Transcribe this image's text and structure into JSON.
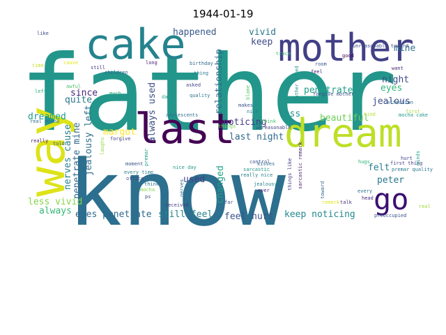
{
  "title": "1944-01-19",
  "colors": {
    "background": "#ffffff",
    "title": "#000000"
  },
  "words": [
    {
      "text": "father",
      "color": "#23968b"
    },
    {
      "text": "know",
      "color": "#2c6f8e"
    },
    {
      "text": "mother",
      "color": "#424086"
    },
    {
      "text": "cake",
      "color": "#25838e"
    },
    {
      "text": "last",
      "color": "#440154"
    },
    {
      "text": "dream",
      "color": "#bddf26"
    },
    {
      "text": "way",
      "color": "#dde318"
    },
    {
      "text": "go",
      "color": "#3b0f70"
    },
    {
      "text": "happened",
      "color": "#38588c"
    },
    {
      "text": "vivid",
      "color": "#2a788e"
    },
    {
      "text": "keep",
      "color": "#3e4a89"
    },
    {
      "text": "mine",
      "color": "#2d708e"
    },
    {
      "text": "relationship",
      "color": "#31688e"
    },
    {
      "text": "always used",
      "color": "#3d4e8a"
    },
    {
      "text": "since",
      "color": "#482878"
    },
    {
      "text": "quite",
      "color": "#2a778e"
    },
    {
      "text": "penetrate",
      "color": "#1f9f88"
    },
    {
      "text": "night",
      "color": "#3d4d8a"
    },
    {
      "text": "eyes",
      "color": "#35b779"
    },
    {
      "text": "jealous",
      "color": "#3e4c8a"
    },
    {
      "text": "dreamed",
      "color": "#1e9b8a"
    },
    {
      "text": "noticing",
      "color": "#443a83"
    },
    {
      "text": "less",
      "color": "#20928c"
    },
    {
      "text": "beautiful",
      "color": "#6ece58"
    },
    {
      "text": "last night",
      "color": "#30698e"
    },
    {
      "text": "margot",
      "color": "#fde725"
    },
    {
      "text": "felt",
      "color": "#287c8e"
    },
    {
      "text": "penetrate mine",
      "color": "#31688e"
    },
    {
      "text": "nerves cause",
      "color": "#277f8e"
    },
    {
      "text": "jealousy left",
      "color": "#2e6f8e"
    },
    {
      "text": "changed",
      "color": "#1fa187"
    },
    {
      "text": "used",
      "color": "#433e85"
    },
    {
      "text": "peter",
      "color": "#2a768e"
    },
    {
      "text": "less vivid",
      "color": "#86d549"
    },
    {
      "text": "always",
      "color": "#38b977"
    },
    {
      "text": "eyes penetrate",
      "color": "#31688e"
    },
    {
      "text": "still feel",
      "color": "#26828e"
    },
    {
      "text": "feel hurt",
      "color": "#3b528b"
    },
    {
      "text": "keep noticing",
      "color": "#23888e"
    },
    {
      "text": "like",
      "color": "#3e4989"
    },
    {
      "text": "time",
      "color": "#c2df23"
    },
    {
      "text": "cause",
      "color": "#e5e419"
    },
    {
      "text": "still",
      "color": "#46337e"
    },
    {
      "text": "long",
      "color": "#482475"
    },
    {
      "text": "children",
      "color": "#33638d"
    },
    {
      "text": "birthday",
      "color": "#2f6c8e"
    },
    {
      "text": "thing",
      "color": "#287d8e"
    },
    {
      "text": "asked",
      "color": "#3f4788"
    },
    {
      "text": "awful",
      "color": "#4ac16d"
    },
    {
      "text": "left",
      "color": "#29af7f"
    },
    {
      "text": "much",
      "color": "#26ad81"
    },
    {
      "text": "day",
      "color": "#1e9c89"
    },
    {
      "text": "quality",
      "color": "#2d718e"
    },
    {
      "text": "unreasonable toward",
      "color": "#3e4a89"
    },
    {
      "text": "trace",
      "color": "#3dbc74"
    },
    {
      "text": "good",
      "color": "#440256"
    },
    {
      "text": "room",
      "color": "#39568c"
    },
    {
      "text": "feel",
      "color": "#482677"
    },
    {
      "text": "want",
      "color": "#482576"
    },
    {
      "text": "father asked",
      "color": "#21918c"
    },
    {
      "text": "forgive mother",
      "color": "#3b528b"
    },
    {
      "text": "affection",
      "color": "#2c728e"
    },
    {
      "text": "first",
      "color": "#a5db36"
    },
    {
      "text": "mocha cake",
      "color": "#1f958b"
    },
    {
      "text": "blame",
      "color": "#5ec962"
    },
    {
      "text": "makes",
      "color": "#3a548c"
    },
    {
      "text": "nice",
      "color": "#2a788e"
    },
    {
      "text": "adolescents",
      "color": "#2c728e"
    },
    {
      "text": "think",
      "color": "#4ac16d"
    },
    {
      "text": "things",
      "color": "#7ad151"
    },
    {
      "text": "unreasonable",
      "color": "#414487"
    },
    {
      "text": "kind",
      "color": "#b5de2b"
    },
    {
      "text": "real mocha",
      "color": "#2d708e"
    },
    {
      "text": "really",
      "color": "#481b6d"
    },
    {
      "text": "told",
      "color": "#355f8d"
    },
    {
      "text": "forgive",
      "color": "#424086"
    },
    {
      "text": "laughs",
      "color": "#95d840"
    },
    {
      "text": "moment",
      "color": "#3a548c"
    },
    {
      "text": "every time",
      "color": "#287d8e"
    },
    {
      "text": "office",
      "color": "#3f4889"
    },
    {
      "text": "think",
      "color": "#2c718e"
    },
    {
      "text": "mocha",
      "color": "#84d44b"
    },
    {
      "text": "ps",
      "color": "#3e4989"
    },
    {
      "text": "nice day",
      "color": "#1f9a8a"
    },
    {
      "text": "premar",
      "color": "#1e9d89"
    },
    {
      "text": "received",
      "color": "#443b84"
    },
    {
      "text": "nerves",
      "color": "#31688e"
    },
    {
      "text": "control",
      "color": "#3b528b"
    },
    {
      "text": "kisses",
      "color": "#2f6b8e"
    },
    {
      "text": "sarcastic",
      "color": "#1f948c"
    },
    {
      "text": "really nice",
      "color": "#27808e"
    },
    {
      "text": "far",
      "color": "#3b528b"
    },
    {
      "text": "jealousy",
      "color": "#25848e"
    },
    {
      "text": "ever",
      "color": "#472c7a"
    },
    {
      "text": "things like",
      "color": "#433d84"
    },
    {
      "text": "sarcastic remark",
      "color": "#481f70"
    },
    {
      "text": "toward",
      "color": "#32648e"
    },
    {
      "text": "remark",
      "color": "#e2e418"
    },
    {
      "text": "talk",
      "color": "#472f7d"
    },
    {
      "text": "hugs",
      "color": "#2fb47c"
    },
    {
      "text": "first thing",
      "color": "#433e85"
    },
    {
      "text": "premar quality",
      "color": "#29798e"
    },
    {
      "text": "hurt",
      "color": "#3f4788"
    },
    {
      "text": "minds",
      "color": "#1f9e89"
    },
    {
      "text": "every",
      "color": "#2c738e"
    },
    {
      "text": "head",
      "color": "#472d7b"
    },
    {
      "text": "real",
      "color": "#9bd93c"
    },
    {
      "text": "preoccupied",
      "color": "#3b518b"
    }
  ]
}
